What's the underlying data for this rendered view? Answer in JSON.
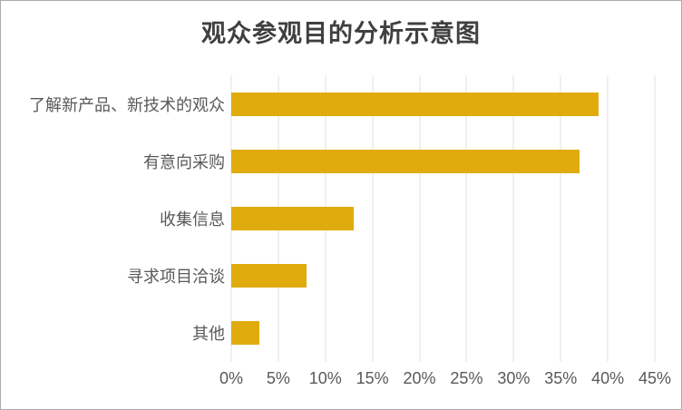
{
  "chart_data": {
    "type": "bar",
    "orientation": "horizontal",
    "title": "观众参观目的分析示意图",
    "categories": [
      "了解新产品、新技术的观众",
      "有意向采购",
      "收集信息",
      "寻求项目洽谈",
      "其他"
    ],
    "values": [
      39,
      37,
      13,
      8,
      3
    ],
    "value_unit": "%",
    "xlabel": "",
    "ylabel": "",
    "xlim": [
      0,
      45
    ],
    "xticks": [
      0,
      5,
      10,
      15,
      20,
      25,
      30,
      35,
      40,
      45
    ],
    "xtick_labels": [
      "0%",
      "5%",
      "10%",
      "15%",
      "20%",
      "25%",
      "30%",
      "35%",
      "40%",
      "45%"
    ],
    "grid": true,
    "legend": "none",
    "colors": {
      "bar": "#e0ab0c",
      "title_text": "#404040",
      "axis_text": "#595959",
      "gridline": "#e2e2e2",
      "chart_border": "#ababab",
      "background": "#ffffff"
    }
  }
}
